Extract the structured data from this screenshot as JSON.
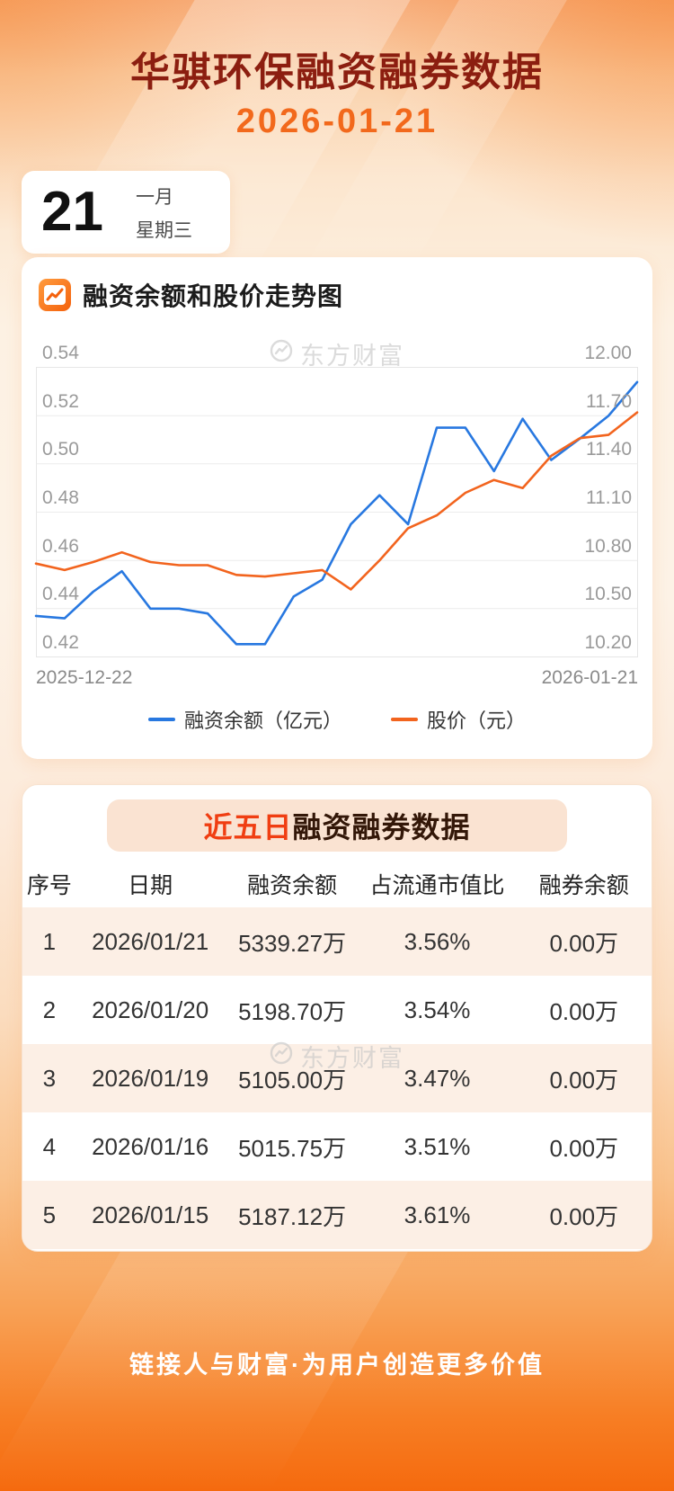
{
  "header": {
    "title": "华骐环保融资融券数据",
    "date": "2026-01-21"
  },
  "date_card": {
    "day": "21",
    "month": "一月",
    "weekday": "星期三"
  },
  "chart_section": {
    "title": "融资余额和股价走势图"
  },
  "watermark": "东方财富",
  "chart_data": {
    "type": "line",
    "title": "融资余额和股价走势图",
    "x_start_label": "2025-12-22",
    "x_end_label": "2026-01-21",
    "grid": true,
    "legend_position": "bottom",
    "left_axis": {
      "min": 0.42,
      "max": 0.54,
      "ticks": [
        "0.54",
        "0.52",
        "0.50",
        "0.48",
        "0.46",
        "0.44",
        "0.42"
      ]
    },
    "right_axis": {
      "min": 10.2,
      "max": 12.0,
      "ticks": [
        "12.00",
        "11.70",
        "11.40",
        "11.10",
        "10.80",
        "10.50",
        "10.20"
      ]
    },
    "series": [
      {
        "name": "融资余额（亿元）",
        "axis": "left",
        "color": "#2878E0",
        "values": [
          0.437,
          0.436,
          0.447,
          0.4555,
          0.44,
          0.44,
          0.438,
          0.4253,
          0.4253,
          0.445,
          0.452,
          0.475,
          0.487,
          0.475,
          0.515,
          0.515,
          0.497,
          0.5187,
          0.5016,
          0.5105,
          0.5199,
          0.5339
        ]
      },
      {
        "name": "股价（元）",
        "axis": "right",
        "color": "#F2641E",
        "values": [
          10.78,
          10.74,
          10.79,
          10.85,
          10.79,
          10.77,
          10.77,
          10.71,
          10.7,
          10.72,
          10.74,
          10.62,
          10.8,
          11.0,
          11.08,
          11.22,
          11.3,
          11.25,
          11.45,
          11.56,
          11.58,
          11.72
        ]
      }
    ]
  },
  "table": {
    "title_highlight": "近五日",
    "title_rest": "融资融券数据",
    "columns": [
      "序号",
      "日期",
      "融资余额",
      "占流通市值比",
      "融券余额"
    ],
    "rows": [
      [
        "1",
        "2026/01/21",
        "5339.27万",
        "3.56%",
        "0.00万"
      ],
      [
        "2",
        "2026/01/20",
        "5198.70万",
        "3.54%",
        "0.00万"
      ],
      [
        "3",
        "2026/01/19",
        "5105.00万",
        "3.47%",
        "0.00万"
      ],
      [
        "4",
        "2026/01/16",
        "5015.75万",
        "3.51%",
        "0.00万"
      ],
      [
        "5",
        "2026/01/15",
        "5187.12万",
        "3.61%",
        "0.00万"
      ]
    ]
  },
  "footer": {
    "slogan": "链接人与财富·为用户创造更多价值"
  },
  "colors": {
    "title": "#8C1E10",
    "accent_orange": "#F2691C",
    "line_blue": "#2878E0",
    "line_orange": "#F2641E",
    "highlight_red": "#F03E12"
  }
}
